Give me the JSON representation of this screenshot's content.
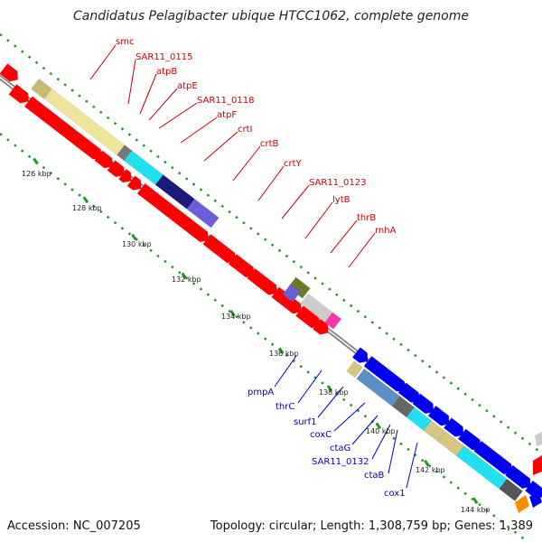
{
  "title": "Candidatus Pelagibacter ubique HTCC1062, complete genome",
  "accession": "Accession: NC_007205",
  "topology": "Topology: circular; Length: 1,308,759 bp; Genes: 1,389",
  "colors": {
    "backbone": "#7f7f7f",
    "tick": "#229922",
    "label_top": "#cc0000",
    "label_bottom": "#0000cc",
    "cds": "#ff0000",
    "cds_reverse": "#0000ee"
  },
  "ticks": [
    "126 kbp",
    "128 kbp",
    "130 kbp",
    "132 kbp",
    "134 kbp",
    "136 kbp",
    "138 kbp",
    "140 kbp",
    "142 kbp",
    "144 kbp"
  ],
  "genes_top": [
    "smc",
    "SAR11_0115",
    "atpB",
    "atpE",
    "SAR11_0118",
    "atpF",
    "crtI",
    "crtB",
    "crtY",
    "SAR11_0123",
    "lytB",
    "thrB",
    "rnhA"
  ],
  "genes_bottom": [
    "pmpA",
    "thrC",
    "surf1",
    "coxC",
    "ctaG",
    "SAR11_0132",
    "ctaB",
    "cox1"
  ]
}
